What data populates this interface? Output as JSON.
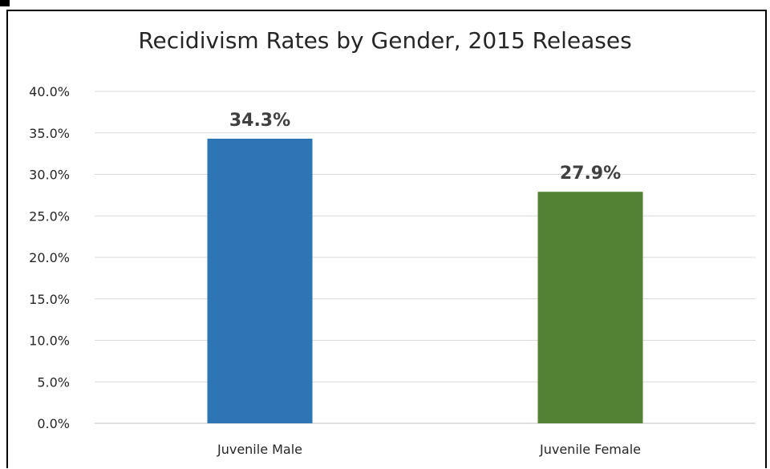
{
  "chart_data": {
    "type": "bar",
    "title": "Recidivism Rates by Gender, 2015 Releases",
    "categories": [
      "Juvenile Male",
      "Juvenile Female"
    ],
    "values": [
      34.3,
      27.9
    ],
    "value_labels": [
      "34.3%",
      "27.9%"
    ],
    "bar_colors": [
      "#2e75b6",
      "#548235"
    ],
    "xlabel": "",
    "ylabel": "",
    "ylim": [
      0,
      40
    ],
    "y_ticks": [
      0,
      5,
      10,
      15,
      20,
      25,
      30,
      35,
      40
    ],
    "y_tick_labels": [
      "0.0%",
      "5.0%",
      "10.0%",
      "15.0%",
      "20.0%",
      "25.0%",
      "30.0%",
      "35.0%",
      "40.0%"
    ],
    "grid": true,
    "legend": "none"
  }
}
